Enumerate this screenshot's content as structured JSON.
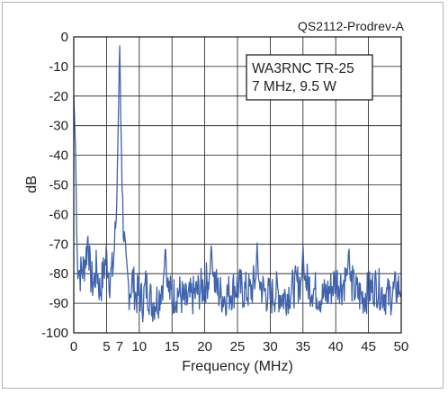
{
  "figure_id": "QS2112-Prodrev-A",
  "chart_data": {
    "type": "line",
    "title": "",
    "xlabel": "Frequency (MHz)",
    "ylabel": "dB",
    "xlim": [
      0,
      50
    ],
    "ylim": [
      -100,
      0
    ],
    "x_ticks": [
      0,
      5,
      7,
      10,
      15,
      20,
      25,
      30,
      35,
      40,
      45,
      50
    ],
    "y_ticks": [
      0,
      -10,
      -20,
      -30,
      -40,
      -50,
      -60,
      -70,
      -80,
      -90,
      -100
    ],
    "grid": true,
    "annotation": [
      "WA3RNC TR-25",
      "7 MHz, 9.5 W"
    ],
    "line_color": "#3f63ad",
    "series": [
      {
        "noise_floor_db": -88,
        "x": [
          0,
          0.3,
          0.5,
          1,
          1.5,
          2,
          2.2,
          2.5,
          3,
          3.5,
          4,
          4.5,
          5,
          5.5,
          6,
          6.5,
          6.8,
          7,
          7.2,
          7.5,
          8,
          8.5,
          9,
          9.5,
          10,
          10.5,
          11,
          12,
          13,
          13.8,
          14,
          14.2,
          15,
          16,
          17,
          18,
          19,
          20,
          20.8,
          21,
          21.2,
          22,
          23,
          24,
          25,
          26,
          27,
          27.8,
          28,
          28.2,
          29,
          30,
          31,
          32,
          33,
          34,
          34.8,
          35,
          35.2,
          36,
          37,
          38,
          39,
          40,
          41,
          41.8,
          42,
          42.2,
          43,
          44,
          45,
          46,
          47,
          48,
          49,
          50
        ],
        "y": [
          -20,
          -40,
          -75,
          -80,
          -78,
          -72,
          -66,
          -80,
          -84,
          -78,
          -86,
          -80,
          -74,
          -82,
          -78,
          -60,
          -30,
          0,
          -30,
          -60,
          -80,
          -86,
          -82,
          -88,
          -86,
          -90,
          -84,
          -90,
          -88,
          -80,
          -69,
          -84,
          -88,
          -86,
          -90,
          -88,
          -86,
          -84,
          -80,
          -69,
          -80,
          -86,
          -88,
          -86,
          -84,
          -86,
          -86,
          -82,
          -69,
          -82,
          -86,
          -88,
          -86,
          -88,
          -86,
          -84,
          -82,
          -70,
          -82,
          -84,
          -86,
          -88,
          -86,
          -82,
          -84,
          -80,
          -70,
          -82,
          -86,
          -88,
          -86,
          -84,
          -86,
          -88,
          -86,
          -84
        ]
      }
    ]
  }
}
